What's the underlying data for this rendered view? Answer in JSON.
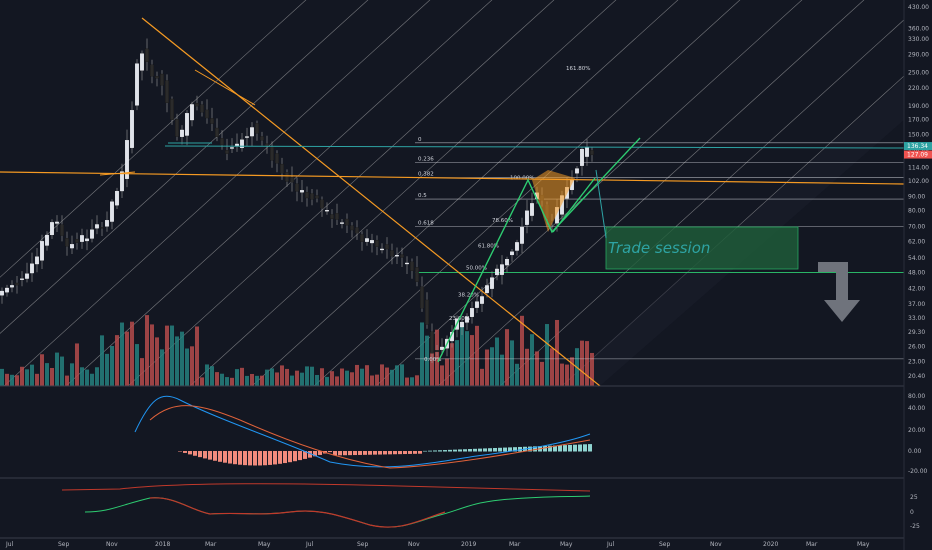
{
  "chart_data": {
    "type": "candlestick",
    "y_scale": "log",
    "price_ticks": [
      "430.00",
      "360.00",
      "330.00",
      "290.00",
      "250.00",
      "220.00",
      "190.00",
      "170.00",
      "150.00",
      "130.00",
      "114.00",
      "102.00",
      "90.00",
      "80.00",
      "70.00",
      "62.00",
      "54.00",
      "48.00",
      "42.00",
      "37.00",
      "33.00",
      "29.30",
      "26.00",
      "23.00",
      "20.40"
    ],
    "price_tick_values": [
      430,
      360,
      330,
      290,
      250,
      220,
      190,
      170,
      150,
      130,
      114,
      102,
      90,
      80,
      70,
      62,
      54,
      48,
      42,
      37,
      33,
      29.3,
      26,
      23,
      20.4
    ],
    "price_labels": [
      {
        "text": "136.34",
        "value": 136.34,
        "color": "#2ea3a3"
      },
      {
        "text": "127.09",
        "value": 127.09,
        "color": "#ef5350"
      }
    ],
    "time_ticks": [
      "Jul",
      "Sep",
      "Nov",
      "2018",
      "Mar",
      "May",
      "Jul",
      "Sep",
      "Nov",
      "2019",
      "Mar",
      "May",
      "Jul",
      "Sep",
      "Nov",
      "2020",
      "Mar",
      "May"
    ],
    "fib_levels": [
      {
        "label": "0",
        "value": 140
      },
      {
        "label": "0.236",
        "value": 119
      },
      {
        "label": "0.382",
        "value": 105
      },
      {
        "label": "0.5",
        "value": 88
      },
      {
        "label": "0.618",
        "value": 70
      },
      {
        "label": "78.60%",
        "value": 74
      },
      {
        "label": "100.00%",
        "value": 105
      },
      {
        "label": "61.80%",
        "value": 60
      },
      {
        "label": "50.00%",
        "value": 50
      },
      {
        "label": "38.20%",
        "value": 40
      },
      {
        "label": "23.60%",
        "value": 33
      },
      {
        "label": "0.00%",
        "value": 23.5
      },
      {
        "label": "161.80%",
        "value": 260
      },
      {
        "label": "1.000",
        "value": 48
      }
    ],
    "annotation": "Trade session",
    "volume_scale": "relative",
    "macd_ticks": [
      "80.00",
      "40.00",
      "20.00",
      "0.00",
      "-20.00"
    ],
    "rsi_ticks": [
      "25",
      "0",
      "-25"
    ]
  },
  "colors": {
    "background": "#131722",
    "bull": "#e0e3eb",
    "bear": "#2b2b2b",
    "volume_up": "#26807e",
    "volume_down": "#b54b4b",
    "trendline": "#f59a23",
    "green_arrow": "#2ecc71",
    "teal": "#2ea3a3",
    "grid_lines": "#c8c8c8"
  }
}
